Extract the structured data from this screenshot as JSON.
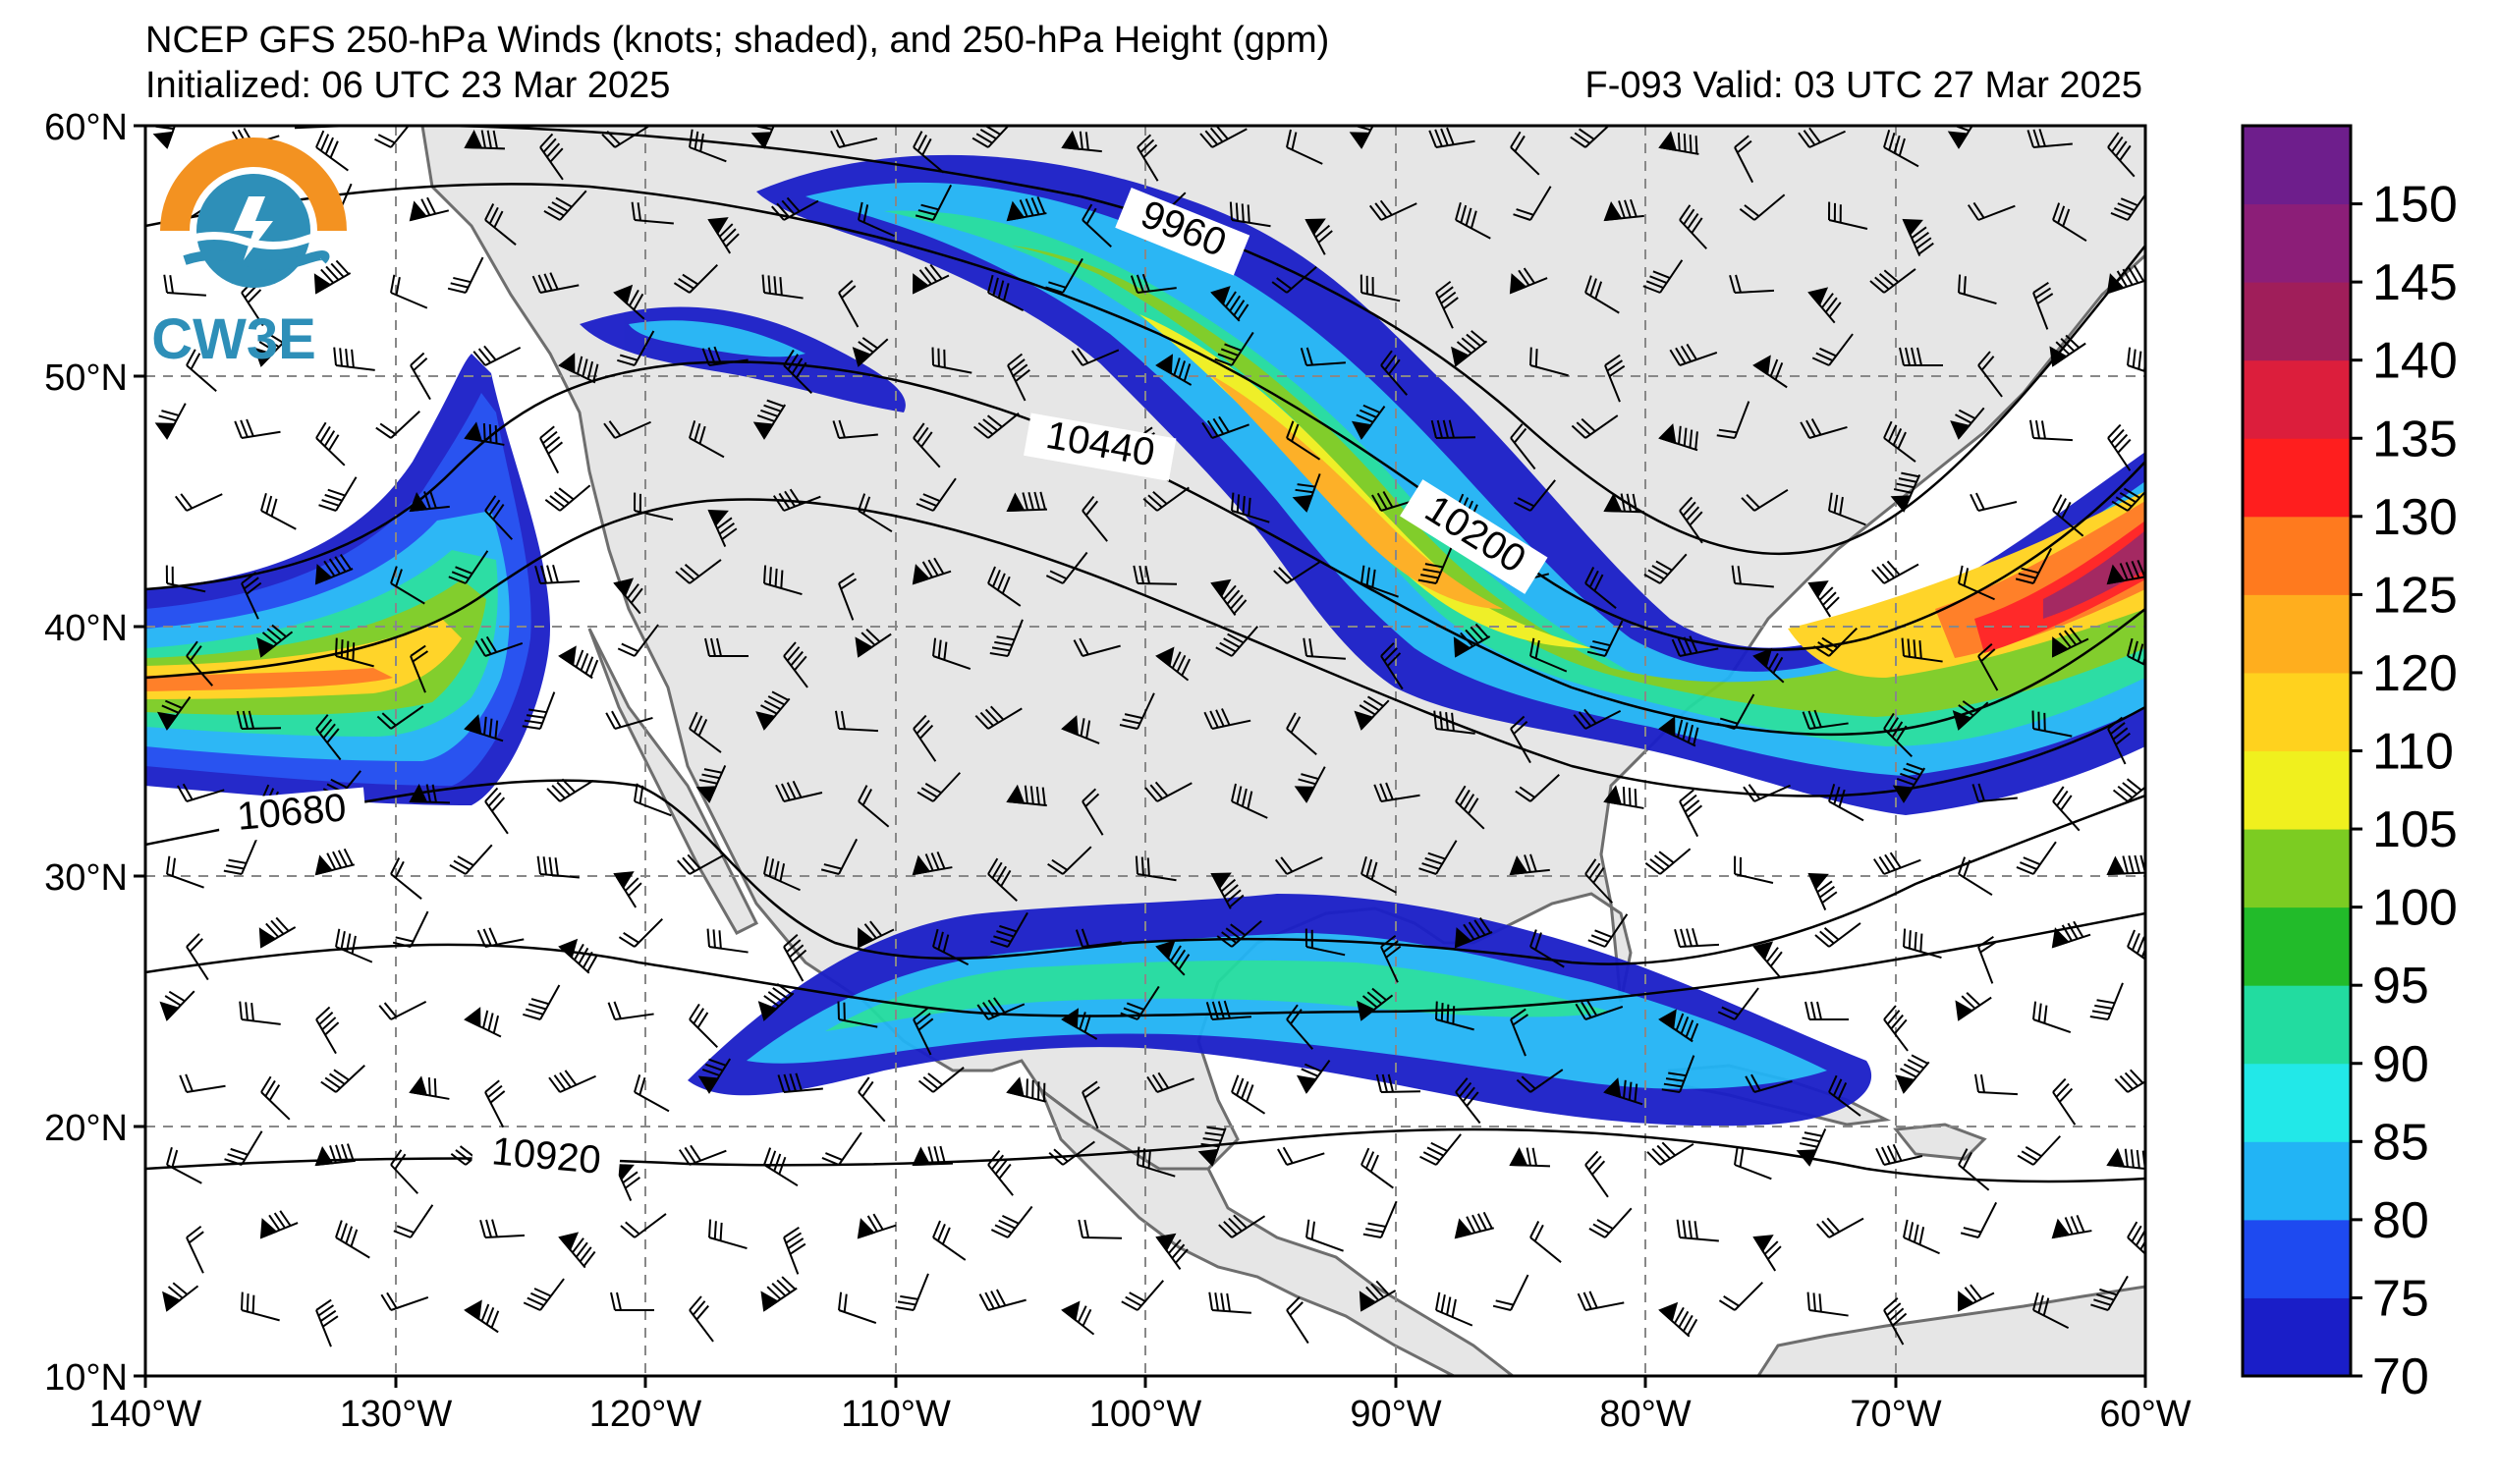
{
  "title_line1": "NCEP GFS 250-hPa Winds (knots; shaded), and 250-hPa Height (gpm)",
  "title_line2": "Initialized: 06 UTC 23 Mar 2025",
  "title_right": "F-093  Valid: 03 UTC 27 Mar 2025",
  "logo_text": "CW3E",
  "lat_labels": [
    "60°N",
    "50°N",
    "40°N",
    "30°N",
    "20°N",
    "10°N"
  ],
  "lon_labels": [
    "140°W",
    "130°W",
    "120°W",
    "110°W",
    "100°W",
    "90°W",
    "80°W",
    "70°W",
    "60°W"
  ],
  "height_labels": [
    "9960",
    "10440",
    "10200",
    "10680",
    "10920"
  ],
  "colorbar": {
    "ticks": [
      "70",
      "75",
      "80",
      "85",
      "90",
      "95",
      "100",
      "105",
      "110",
      "120",
      "125",
      "130",
      "135",
      "140",
      "145",
      "150"
    ],
    "colors": [
      "#1a1ec8",
      "#1e4af0",
      "#22b4f5",
      "#22e8e8",
      "#22dca0",
      "#22bb2a",
      "#7ccc22",
      "#f0f01e",
      "#ffd21e",
      "#ffae1e",
      "#ff7a1e",
      "#ff1e1e",
      "#dc1e3c",
      "#a01e5a",
      "#8c1e78",
      "#6e1e8c"
    ]
  },
  "colors": {
    "land": "#e6e6e6",
    "ocean": "#ffffff",
    "coast": "#6e6e6e",
    "grid": "#888888"
  }
}
